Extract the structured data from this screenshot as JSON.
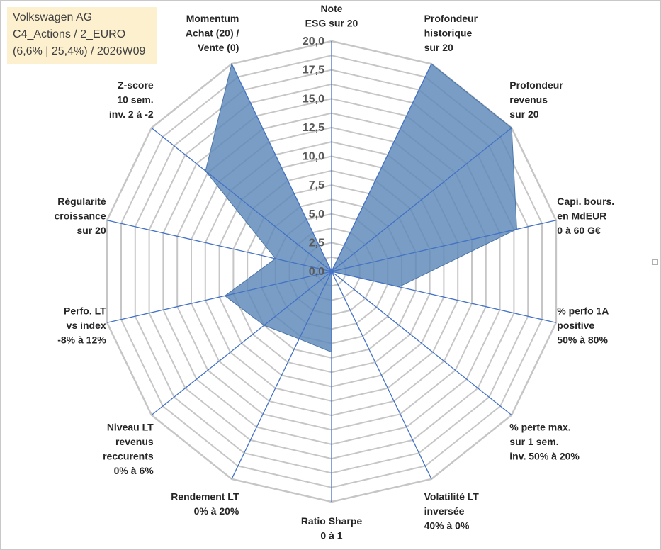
{
  "header": {
    "lines": [
      "Volkswagen AG",
      "C4_Actions / 2_EURO",
      "(6,6% | 25,4%) / 2026W09"
    ]
  },
  "chart_data": {
    "type": "radar",
    "title": "Volkswagen AG",
    "range": [
      0,
      20
    ],
    "ticks": [
      "0,0",
      "2,5",
      "5,0",
      "7,5",
      "10,0",
      "12,5",
      "15,0",
      "17,5",
      "20,0"
    ],
    "gridlines": 16,
    "axes": [
      {
        "label": [
          "Note",
          "ESG sur 20"
        ],
        "value": 0
      },
      {
        "label": [
          "Profondeur",
          "historique",
          "sur 20"
        ],
        "value": 20
      },
      {
        "label": [
          "Profondeur",
          "revenus",
          "sur 20"
        ],
        "value": 20
      },
      {
        "label": [
          "Capi. bours.",
          "en MdEUR",
          "0 à 60 G€"
        ],
        "value": 16.5
      },
      {
        "label": [
          "% perfo 1A",
          "positive",
          "50% à 80%"
        ],
        "value": 6
      },
      {
        "label": [
          "% perte max.",
          "sur 1 sem.",
          "inv. 50% à 20%"
        ],
        "value": 0
      },
      {
        "label": [
          "Volatilité LT",
          "inversée",
          "40% à 0%"
        ],
        "value": 0
      },
      {
        "label": [
          "Ratio Sharpe",
          "0 à 1"
        ],
        "value": 7
      },
      {
        "label": [
          "Rendement LT",
          "0% à 20%"
        ],
        "value": 6.5
      },
      {
        "label": [
          "Niveau LT",
          "revenus",
          "reccurents",
          "0% à 6%"
        ],
        "value": 7.5
      },
      {
        "label": [
          "Perfo. LT",
          "vs index",
          "-8% à 12%"
        ],
        "value": 9.5
      },
      {
        "label": [
          "Régularité",
          "croissance",
          "sur 20"
        ],
        "value": 5
      },
      {
        "label": [
          "Z-score",
          "10 sem.",
          "inv. 2 à -2"
        ],
        "value": 14
      },
      {
        "label": [
          "Momentum",
          "Achat (20) /",
          "Vente (0)"
        ],
        "value": 20
      }
    ],
    "series": [
      {
        "name": "Volkswagen AG",
        "color": "#5b87b8"
      }
    ],
    "colors": {
      "fill": "#5b87b8",
      "edge": "#4a75a8",
      "grid": "#c6c6c6",
      "spoke": "#4472c4"
    }
  }
}
